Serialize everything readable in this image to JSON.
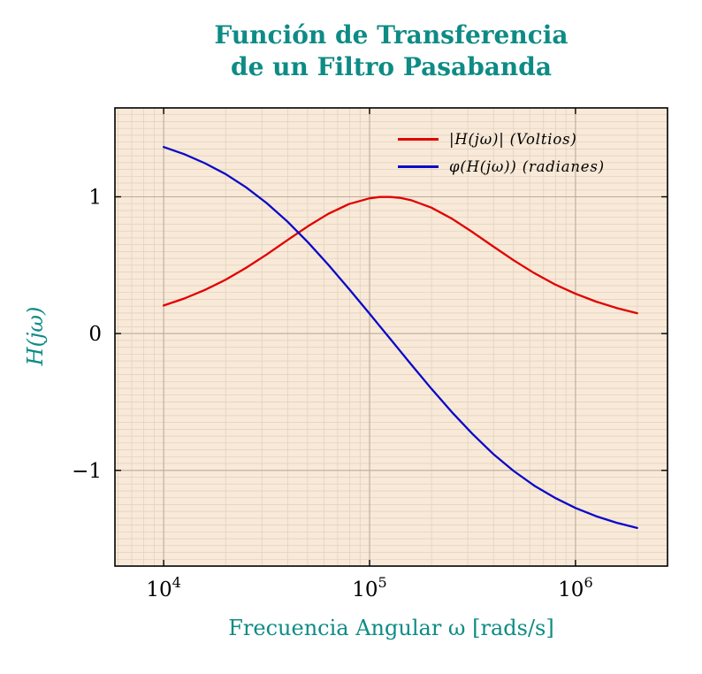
{
  "chart_data": {
    "type": "line",
    "title_lines": [
      "Función de Transferencia",
      "de un Filtro Pasabanda"
    ],
    "xlabel": "Frecuencia Angular ω [rads/s]",
    "ylabel": "H(jω)",
    "x_scale": "log",
    "grid": "both",
    "legend_position": "top-right",
    "xlim": [
      5800,
      2800000
    ],
    "ylim": [
      -1.7,
      1.65
    ],
    "x_ticks": [
      {
        "base": "10",
        "exp": "4",
        "value": 10000
      },
      {
        "base": "10",
        "exp": "5",
        "value": 100000
      },
      {
        "base": "10",
        "exp": "6",
        "value": 1000000
      }
    ],
    "y_ticks": [
      {
        "label": "1",
        "value": 1
      },
      {
        "label": "0",
        "value": 0
      },
      {
        "label": "−1",
        "value": -1
      }
    ],
    "colors": {
      "accent_teal": "#0e8b85",
      "magnitude_red": "#e10000",
      "phase_blue": "#0a0ac8",
      "plot_bg": "#f8e9d8",
      "grid_minor": "#e0d0bc",
      "grid_major": "#bcab99",
      "axis": "#000000"
    },
    "series": [
      {
        "name": "|H(jω)| (Voltios)",
        "color": "#e10000",
        "x": [
          10000,
          12589,
          15849,
          19953,
          25119,
          31623,
          39811,
          50119,
          63096,
          79433,
          100000,
          112202,
          125893,
          141254,
          158489,
          199526,
          251189,
          316228,
          398107,
          501187,
          630957,
          794328,
          1000000,
          1258925,
          1584893,
          1995262
        ],
        "y": [
          0.205,
          0.256,
          0.319,
          0.393,
          0.48,
          0.578,
          0.682,
          0.784,
          0.876,
          0.947,
          0.989,
          0.999,
          0.999,
          0.992,
          0.976,
          0.921,
          0.84,
          0.742,
          0.638,
          0.536,
          0.442,
          0.36,
          0.291,
          0.234,
          0.187,
          0.149
        ]
      },
      {
        "name": "φ(H(jω)) (radianes)",
        "color": "#0a0ac8",
        "x": [
          10000,
          12589,
          15849,
          19953,
          25119,
          31623,
          39811,
          50119,
          63096,
          79433,
          100000,
          112202,
          125893,
          141254,
          158489,
          199526,
          251189,
          316228,
          398107,
          501187,
          630957,
          794328,
          1000000,
          1258925,
          1584893,
          1995262
        ],
        "y": [
          1.364,
          1.312,
          1.246,
          1.167,
          1.07,
          0.955,
          0.821,
          0.669,
          0.503,
          0.327,
          0.146,
          0.054,
          -0.038,
          -0.13,
          -0.222,
          -0.402,
          -0.574,
          -0.734,
          -0.879,
          -1.005,
          -1.112,
          -1.201,
          -1.275,
          -1.335,
          -1.383,
          -1.421
        ]
      }
    ]
  }
}
